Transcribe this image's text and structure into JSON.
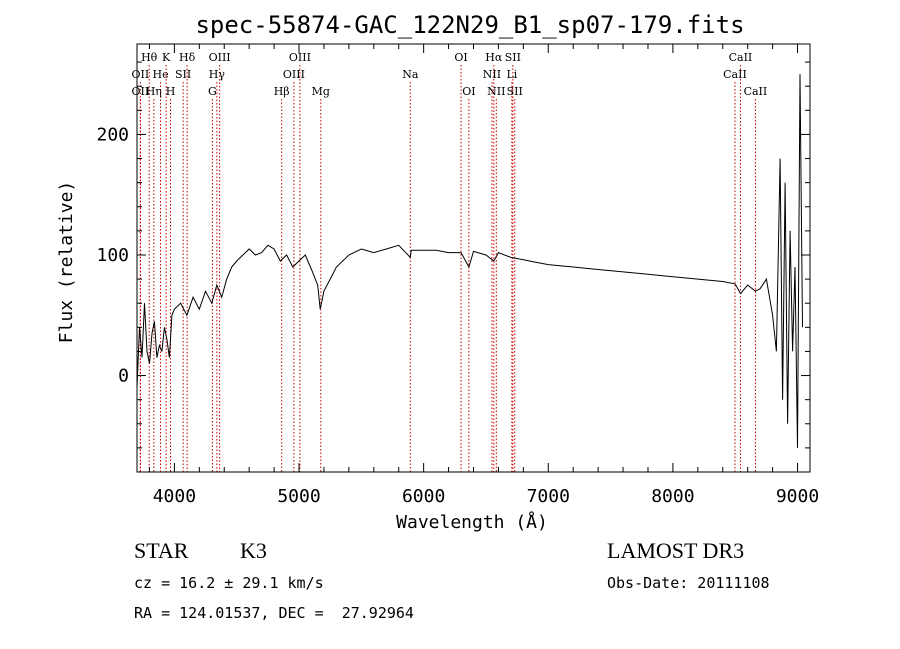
{
  "chart_data": {
    "type": "line",
    "title": "spec-55874-GAC_122N29_B1_sp07-179.fits",
    "xlabel": "Wavelength (Å)",
    "ylabel": "Flux (relative)",
    "xlim": [
      3700,
      9100
    ],
    "ylim": [
      -80,
      275
    ],
    "xticks": [
      4000,
      5000,
      6000,
      7000,
      8000,
      9000
    ],
    "yticks": [
      0,
      100,
      200
    ],
    "grid": false,
    "line_color": "#000000",
    "marker_color": "#cc0000",
    "series": [
      {
        "x": [
          3700,
          3720,
          3740,
          3760,
          3780,
          3800,
          3820,
          3840,
          3860,
          3880,
          3900,
          3920,
          3940,
          3960,
          3980,
          4000,
          4050,
          4100,
          4150,
          4200,
          4250,
          4300,
          4340,
          4380,
          4420,
          4460,
          4500,
          4550,
          4600,
          4650,
          4700,
          4750,
          4800,
          4850,
          4900,
          4950,
          5000,
          5050,
          5100,
          5150,
          5170,
          5180,
          5200,
          5250,
          5300,
          5400,
          5500,
          5600,
          5700,
          5800,
          5893,
          5900,
          6000,
          6100,
          6200,
          6300,
          6363,
          6400,
          6500,
          6563,
          6600,
          6700,
          6800,
          6900,
          7000,
          7200,
          7400,
          7600,
          7800,
          8000,
          8200,
          8400,
          8500,
          8542,
          8600,
          8662,
          8700,
          8750,
          8800,
          8830,
          8860,
          8880,
          8900,
          8920,
          8940,
          8960,
          8980,
          9000,
          9020,
          9040
        ],
        "y": [
          -10,
          40,
          15,
          60,
          20,
          10,
          35,
          45,
          15,
          25,
          20,
          40,
          30,
          15,
          50,
          55,
          60,
          50,
          65,
          55,
          70,
          60,
          75,
          65,
          80,
          90,
          95,
          100,
          105,
          100,
          102,
          108,
          105,
          95,
          100,
          90,
          95,
          100,
          88,
          75,
          55,
          60,
          70,
          80,
          90,
          100,
          105,
          102,
          105,
          108,
          98,
          104,
          104,
          104,
          102,
          102,
          90,
          103,
          100,
          95,
          102,
          98,
          96,
          94,
          92,
          90,
          88,
          86,
          84,
          82,
          80,
          78,
          76,
          68,
          75,
          70,
          72,
          80,
          50,
          20,
          180,
          -20,
          160,
          -40,
          120,
          20,
          90,
          -60,
          250,
          40
        ]
      }
    ],
    "lines": [
      {
        "label": "Hθ",
        "x": 3798,
        "row": 1
      },
      {
        "label": "OII",
        "x": 3727,
        "row": 2
      },
      {
        "label": "OII",
        "x": 3727,
        "row": 3
      },
      {
        "label": "He",
        "x": 3889,
        "row": 2
      },
      {
        "label": "Hη",
        "x": 3835,
        "row": 3
      },
      {
        "label": "K",
        "x": 3934,
        "row": 1
      },
      {
        "label": "H",
        "x": 3969,
        "row": 3
      },
      {
        "label": "SII",
        "x": 4070,
        "row": 2
      },
      {
        "label": "Hδ",
        "x": 4102,
        "row": 1
      },
      {
        "label": "OIII",
        "x": 4363,
        "row": 1
      },
      {
        "label": "Hγ",
        "x": 4341,
        "row": 2
      },
      {
        "label": "G",
        "x": 4305,
        "row": 3
      },
      {
        "label": "Hβ",
        "x": 4861,
        "row": 3
      },
      {
        "label": "OIII",
        "x": 5007,
        "row": 1
      },
      {
        "label": "OIII",
        "x": 4959,
        "row": 2
      },
      {
        "label": "Mg",
        "x": 5175,
        "row": 3
      },
      {
        "label": "Na",
        "x": 5893,
        "row": 2
      },
      {
        "label": "OI",
        "x": 6300,
        "row": 1
      },
      {
        "label": "OI",
        "x": 6363,
        "row": 3
      },
      {
        "label": "Hα",
        "x": 6563,
        "row": 1
      },
      {
        "label": "NII",
        "x": 6548,
        "row": 2
      },
      {
        "label": "NII",
        "x": 6583,
        "row": 3
      },
      {
        "label": "SII",
        "x": 6716,
        "row": 1
      },
      {
        "label": "Li",
        "x": 6708,
        "row": 2
      },
      {
        "label": "SII",
        "x": 6731,
        "row": 3
      },
      {
        "label": "CaII",
        "x": 8542,
        "row": 1
      },
      {
        "label": "CaII",
        "x": 8498,
        "row": 2
      },
      {
        "label": "CaII",
        "x": 8662,
        "row": 3
      }
    ]
  },
  "footer": {
    "class_label": "STAR",
    "subclass": "K3",
    "survey": "LAMOST DR3",
    "cz": "cz = 16.2 ± 29.1 km/s",
    "obs_date": "Obs-Date: 20111108",
    "radec": "RA = 124.01537, DEC =  27.92964"
  }
}
